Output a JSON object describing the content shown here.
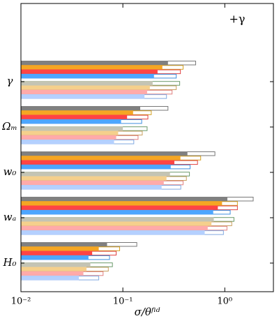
{
  "chart_data": {
    "type": "bar",
    "orientation": "horizontal",
    "annotation": "+γ",
    "xlabel": "σ/θᶠⁱᵈ",
    "categories": [
      "γ",
      "Ωₘ",
      "w₀",
      "wₐ",
      "H₀"
    ],
    "xscale": "log",
    "xlim": [
      0.01,
      3
    ],
    "xticks": [
      {
        "value": 0.01,
        "label": "10⁻²"
      },
      {
        "value": 0.1,
        "label": "10⁻¹"
      },
      {
        "value": 1,
        "label": "10⁰"
      }
    ],
    "series": [
      {
        "style": "outline",
        "color": "#777777",
        "values": [
          0.518,
          0.277,
          0.8,
          1.9,
          0.137
        ]
      },
      {
        "style": "filled",
        "color": "#808080",
        "values": [
          0.277,
          0.148,
          0.43,
          1.06,
          0.07
        ]
      },
      {
        "style": "outline",
        "color": "#d4a020",
        "values": [
          0.39,
          0.19,
          0.58,
          1.33,
          0.093
        ]
      },
      {
        "style": "filled",
        "color": "#f5a623",
        "values": [
          0.244,
          0.126,
          0.367,
          0.94,
          0.058
        ]
      },
      {
        "style": "outline",
        "color": "#e04040",
        "values": [
          0.367,
          0.176,
          0.54,
          1.33,
          0.086
        ]
      },
      {
        "style": "filled",
        "color": "#ff4444",
        "values": [
          0.219,
          0.11,
          0.32,
          0.855,
          0.05
        ]
      },
      {
        "style": "outline",
        "color": "#3d8fe0",
        "values": [
          0.334,
          0.153,
          0.457,
          1.13,
          0.074
        ]
      },
      {
        "style": "filled",
        "color": "#4da6ff",
        "values": [
          0.202,
          0.096,
          0.295,
          0.77,
          0.046
        ]
      },
      {
        "style": "outline",
        "color": "#6a9a6a",
        "values": [
          0.361,
          0.173,
          0.45,
          1.23,
          0.079
        ]
      },
      {
        "style": "filled",
        "color": "#c4c4b4",
        "values": [
          0.196,
          0.1,
          0.29,
          0.78,
          0.048
        ]
      },
      {
        "style": "outline",
        "color": "#c8a060",
        "values": [
          0.334,
          0.155,
          0.42,
          1.17,
          0.072
        ]
      },
      {
        "style": "filled",
        "color": "#f5d08c",
        "values": [
          0.184,
          0.09,
          0.268,
          0.74,
          0.044
        ]
      },
      {
        "style": "outline",
        "color": "#e08080",
        "values": [
          0.304,
          0.141,
          0.39,
          1.05,
          0.064
        ]
      },
      {
        "style": "filled",
        "color": "#ffaaaa",
        "values": [
          0.173,
          0.086,
          0.252,
          0.68,
          0.041
        ]
      },
      {
        "style": "outline",
        "color": "#80a8e0",
        "values": [
          0.268,
          0.128,
          0.37,
          0.97,
          0.058
        ]
      },
      {
        "style": "filled",
        "color": "#b4d0ff",
        "values": [
          0.163,
          0.082,
          0.24,
          0.635,
          0.037
        ]
      }
    ]
  }
}
